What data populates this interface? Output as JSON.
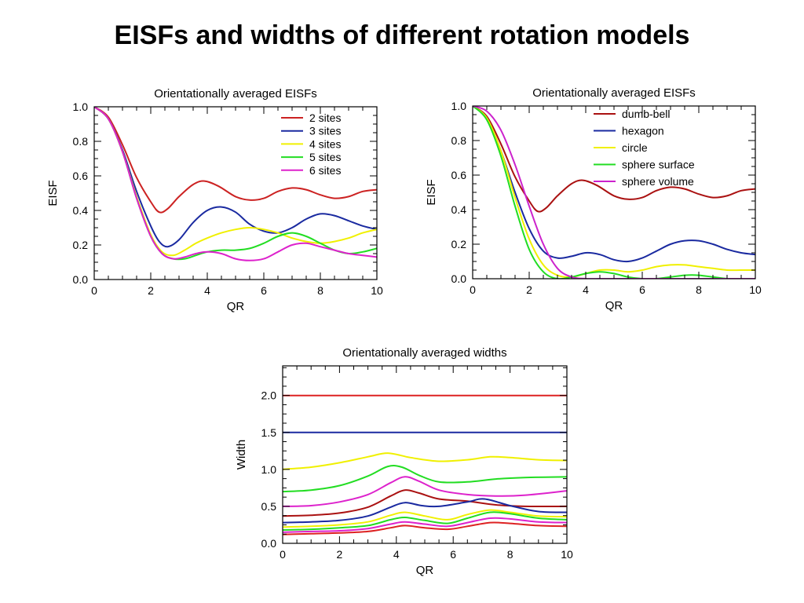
{
  "slide": {
    "title": "EISFs and widths of different rotation models"
  },
  "chart_data": [
    {
      "type": "line",
      "title": "Orientationally averaged EISFs",
      "xlabel": "QR",
      "ylabel": "EISF",
      "xlim": [
        0,
        10
      ],
      "ylim": [
        0,
        1.0
      ],
      "xticks": [
        "0",
        "2",
        "4",
        "6",
        "8",
        "10"
      ],
      "yticks": [
        "0.0",
        "0.2",
        "0.4",
        "0.6",
        "0.8",
        "1.0"
      ],
      "legend": "top-right",
      "series": [
        {
          "name": "2 sites",
          "color": "#cc2222",
          "x": [
            0,
            0.5,
            1,
            1.5,
            2,
            2.3,
            2.6,
            3,
            3.5,
            3.9,
            4.4,
            5,
            5.5,
            6,
            6.5,
            7,
            7.5,
            8,
            8.5,
            9,
            9.5,
            10
          ],
          "y": [
            1.0,
            0.94,
            0.78,
            0.59,
            0.45,
            0.39,
            0.41,
            0.48,
            0.55,
            0.57,
            0.54,
            0.48,
            0.46,
            0.47,
            0.51,
            0.53,
            0.52,
            0.49,
            0.47,
            0.48,
            0.51,
            0.52
          ]
        },
        {
          "name": "3 sites",
          "color": "#1a2aa0",
          "x": [
            0,
            0.5,
            1,
            1.5,
            2,
            2.3,
            2.6,
            3,
            3.5,
            4,
            4.5,
            5,
            5.5,
            6,
            6.5,
            7,
            7.5,
            8,
            8.5,
            9,
            9.5,
            10
          ],
          "y": [
            1.0,
            0.93,
            0.75,
            0.51,
            0.31,
            0.22,
            0.19,
            0.23,
            0.33,
            0.4,
            0.42,
            0.39,
            0.32,
            0.28,
            0.27,
            0.3,
            0.35,
            0.38,
            0.37,
            0.34,
            0.31,
            0.29
          ]
        },
        {
          "name": "4 sites",
          "color": "#f0f000",
          "x": [
            0,
            0.5,
            1,
            1.5,
            2,
            2.4,
            2.8,
            3.2,
            3.6,
            4,
            4.5,
            5,
            5.5,
            6,
            6.5,
            7,
            7.5,
            8,
            8.5,
            9,
            9.5,
            10
          ],
          "y": [
            1.0,
            0.93,
            0.74,
            0.48,
            0.26,
            0.16,
            0.14,
            0.17,
            0.21,
            0.24,
            0.27,
            0.29,
            0.3,
            0.29,
            0.27,
            0.24,
            0.22,
            0.21,
            0.22,
            0.24,
            0.27,
            0.29
          ]
        },
        {
          "name": "5 sites",
          "color": "#22dd22",
          "x": [
            0,
            0.5,
            1,
            1.5,
            2,
            2.4,
            2.8,
            3.2,
            3.6,
            4,
            4.5,
            5,
            5.5,
            6,
            6.5,
            7,
            7.5,
            8,
            8.5,
            9,
            9.5,
            10
          ],
          "y": [
            1.0,
            0.93,
            0.74,
            0.47,
            0.25,
            0.15,
            0.12,
            0.12,
            0.14,
            0.16,
            0.17,
            0.17,
            0.18,
            0.21,
            0.25,
            0.27,
            0.25,
            0.21,
            0.17,
            0.15,
            0.16,
            0.18
          ]
        },
        {
          "name": "6 sites",
          "color": "#dd22cc",
          "x": [
            0,
            0.5,
            1,
            1.5,
            2,
            2.4,
            2.8,
            3.2,
            3.6,
            4,
            4.5,
            5,
            5.5,
            6,
            6.5,
            7,
            7.5,
            8,
            8.5,
            9,
            9.5,
            10
          ],
          "y": [
            1.0,
            0.93,
            0.74,
            0.47,
            0.25,
            0.15,
            0.12,
            0.13,
            0.15,
            0.16,
            0.15,
            0.12,
            0.11,
            0.12,
            0.16,
            0.2,
            0.21,
            0.19,
            0.17,
            0.15,
            0.14,
            0.13
          ]
        }
      ]
    },
    {
      "type": "line",
      "title": "Orientationally averaged EISFs",
      "xlabel": "QR",
      "ylabel": "EISF",
      "xlim": [
        0,
        10
      ],
      "ylim": [
        0,
        1.0
      ],
      "xticks": [
        "0",
        "2",
        "4",
        "6",
        "8",
        "10"
      ],
      "yticks": [
        "0.0",
        "0.2",
        "0.4",
        "0.6",
        "0.8",
        "1.0"
      ],
      "legend": "top-right",
      "series": [
        {
          "name": "dumb-bell",
          "color": "#aa1111",
          "x": [
            0,
            0.5,
            1,
            1.5,
            2,
            2.3,
            2.6,
            3,
            3.5,
            3.9,
            4.4,
            5,
            5.5,
            6,
            6.5,
            7,
            7.5,
            8,
            8.5,
            9,
            9.5,
            10
          ],
          "y": [
            1.0,
            0.94,
            0.78,
            0.59,
            0.45,
            0.39,
            0.41,
            0.48,
            0.55,
            0.57,
            0.54,
            0.48,
            0.46,
            0.47,
            0.51,
            0.53,
            0.52,
            0.49,
            0.47,
            0.48,
            0.51,
            0.52
          ]
        },
        {
          "name": "hexagon",
          "color": "#1a2aa0",
          "x": [
            0,
            0.5,
            1,
            1.5,
            2,
            2.5,
            3,
            3.5,
            4,
            4.5,
            5,
            5.5,
            6,
            6.5,
            7,
            7.5,
            8,
            8.5,
            9,
            9.5,
            10
          ],
          "y": [
            1.0,
            0.93,
            0.74,
            0.5,
            0.29,
            0.16,
            0.12,
            0.13,
            0.15,
            0.14,
            0.11,
            0.1,
            0.12,
            0.16,
            0.2,
            0.22,
            0.22,
            0.2,
            0.17,
            0.15,
            0.14
          ]
        },
        {
          "name": "circle",
          "color": "#f0f000",
          "x": [
            0,
            0.5,
            1,
            1.5,
            2,
            2.5,
            3,
            3.5,
            4,
            4.5,
            5,
            5.5,
            6,
            6.5,
            7,
            7.5,
            8,
            8.5,
            9,
            9.5,
            10
          ],
          "y": [
            1.0,
            0.93,
            0.74,
            0.47,
            0.23,
            0.08,
            0.02,
            0.01,
            0.03,
            0.05,
            0.05,
            0.04,
            0.05,
            0.07,
            0.08,
            0.08,
            0.07,
            0.06,
            0.05,
            0.05,
            0.05
          ]
        },
        {
          "name": "sphere surface",
          "color": "#22dd22",
          "x": [
            0,
            0.5,
            1,
            1.5,
            2,
            2.5,
            3,
            3.5,
            4,
            4.5,
            5,
            5.5,
            6,
            6.5,
            7,
            7.5,
            8,
            8.5,
            9,
            9.5,
            10
          ],
          "y": [
            1.0,
            0.92,
            0.71,
            0.42,
            0.17,
            0.04,
            0.0,
            0.01,
            0.03,
            0.04,
            0.03,
            0.01,
            0.0,
            0.0,
            0.01,
            0.02,
            0.02,
            0.01,
            0.0,
            0.0,
            0.0
          ]
        },
        {
          "name": "sphere volume",
          "color": "#cc22cc",
          "x": [
            0,
            0.5,
            1,
            1.5,
            2,
            2.5,
            3,
            3.5,
            4,
            4.5,
            5,
            5.5,
            6,
            6.5,
            7,
            7.5,
            8,
            8.5,
            9,
            9.5,
            10
          ],
          "y": [
            1.0,
            0.97,
            0.86,
            0.66,
            0.42,
            0.2,
            0.06,
            0.01,
            0.0,
            0.0,
            0.0,
            0.0,
            0.0,
            0.0,
            0.0,
            0.0,
            0.0,
            0.0,
            0.0,
            0.0,
            0.0
          ]
        }
      ]
    },
    {
      "type": "line",
      "title": "Orientationally averaged widths",
      "xlabel": "QR",
      "ylabel": "Width",
      "xlim": [
        0,
        10
      ],
      "ylim": [
        0,
        2.4
      ],
      "xticks": [
        "0",
        "2",
        "4",
        "6",
        "8",
        "10"
      ],
      "yticks": [
        "0.0",
        "0.5",
        "1.0",
        "1.5",
        "2.0"
      ],
      "series": [
        {
          "color": "#dd2222",
          "x": [
            0,
            10
          ],
          "y": [
            2.0,
            2.0
          ]
        },
        {
          "color": "#1a2aa0",
          "x": [
            0,
            10
          ],
          "y": [
            1.5,
            1.5
          ]
        },
        {
          "color": "#f0f000",
          "x": [
            0,
            1,
            2,
            3,
            3.7,
            4.5,
            5.5,
            6.5,
            7.3,
            8,
            9,
            10
          ],
          "y": [
            1.0,
            1.03,
            1.09,
            1.17,
            1.22,
            1.16,
            1.11,
            1.13,
            1.17,
            1.16,
            1.13,
            1.12
          ]
        },
        {
          "color": "#22dd22",
          "x": [
            0,
            1,
            2,
            3,
            3.7,
            4.2,
            4.8,
            5.5,
            6.5,
            7.5,
            8.5,
            10
          ],
          "y": [
            0.7,
            0.72,
            0.78,
            0.91,
            1.04,
            1.03,
            0.92,
            0.83,
            0.83,
            0.87,
            0.89,
            0.9
          ]
        },
        {
          "color": "#dd22cc",
          "x": [
            0,
            1,
            2,
            3,
            3.8,
            4.3,
            4.8,
            5.5,
            6.5,
            7.5,
            8.5,
            10
          ],
          "y": [
            0.5,
            0.51,
            0.56,
            0.66,
            0.82,
            0.9,
            0.84,
            0.72,
            0.66,
            0.64,
            0.65,
            0.71
          ]
        },
        {
          "color": "#aa1111",
          "x": [
            0,
            1,
            2,
            3,
            3.8,
            4.3,
            4.8,
            5.5,
            6.5,
            7.5,
            8.5,
            10
          ],
          "y": [
            0.37,
            0.38,
            0.41,
            0.49,
            0.64,
            0.72,
            0.68,
            0.6,
            0.57,
            0.52,
            0.5,
            0.5
          ]
        },
        {
          "color": "#1a2aa0",
          "x": [
            0,
            1,
            2,
            3,
            3.8,
            4.3,
            4.9,
            5.5,
            6.5,
            7.1,
            8,
            9,
            10
          ],
          "y": [
            0.28,
            0.29,
            0.31,
            0.37,
            0.49,
            0.55,
            0.51,
            0.5,
            0.56,
            0.6,
            0.51,
            0.43,
            0.42
          ]
        },
        {
          "color": "#f0f000",
          "x": [
            0,
            1,
            2,
            3,
            3.8,
            4.3,
            5,
            5.8,
            6.5,
            7.3,
            8,
            9,
            10
          ],
          "y": [
            0.22,
            0.23,
            0.25,
            0.29,
            0.38,
            0.42,
            0.37,
            0.32,
            0.39,
            0.45,
            0.42,
            0.37,
            0.36
          ]
        },
        {
          "color": "#22dd22",
          "x": [
            0,
            1,
            2,
            3,
            3.8,
            4.3,
            5,
            5.8,
            6.5,
            7.3,
            8,
            9,
            10
          ],
          "y": [
            0.18,
            0.19,
            0.21,
            0.24,
            0.32,
            0.35,
            0.31,
            0.27,
            0.34,
            0.42,
            0.4,
            0.34,
            0.32
          ]
        },
        {
          "color": "#dd22cc",
          "x": [
            0,
            1,
            2,
            3,
            3.8,
            4.3,
            5,
            5.8,
            6.5,
            7.3,
            8,
            9,
            10
          ],
          "y": [
            0.15,
            0.16,
            0.17,
            0.2,
            0.26,
            0.29,
            0.26,
            0.23,
            0.28,
            0.34,
            0.33,
            0.29,
            0.28
          ]
        },
        {
          "color": "#dd2222",
          "x": [
            0,
            1,
            2,
            3,
            3.8,
            4.3,
            5,
            5.8,
            6.5,
            7.3,
            8,
            9,
            10
          ],
          "y": [
            0.12,
            0.13,
            0.14,
            0.16,
            0.21,
            0.24,
            0.21,
            0.19,
            0.23,
            0.28,
            0.27,
            0.24,
            0.23
          ]
        }
      ]
    }
  ]
}
